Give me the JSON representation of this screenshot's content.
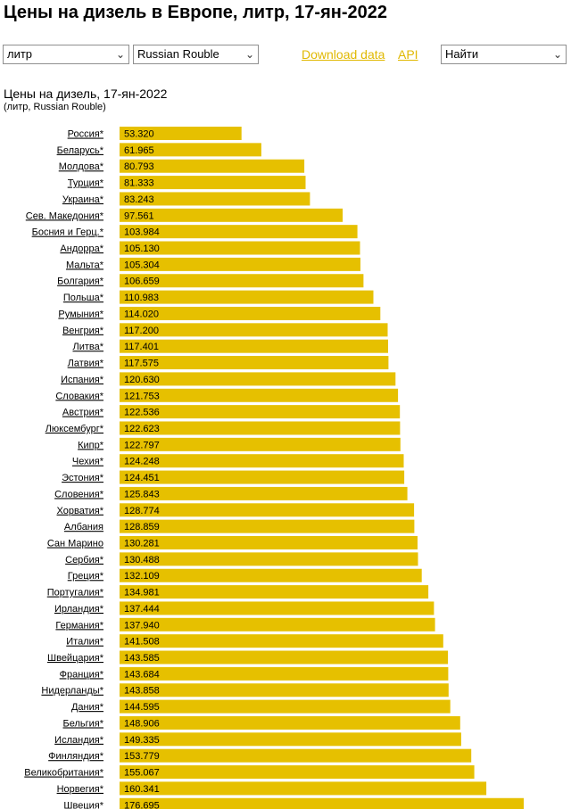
{
  "header": {
    "title": "Цены на дизель в Европе, литр, 17-ян-2022"
  },
  "controls": {
    "unit_select": "литр",
    "currency_select": "Russian Rouble",
    "download_label": "Download data",
    "api_label": "API",
    "find_select": "Найти"
  },
  "colors": {
    "bar": "#e6c000",
    "link": "#e0b800"
  },
  "chart_data": {
    "type": "bar",
    "orientation": "horizontal",
    "title": "Цены на дизель, 17-ян-2022",
    "subtitle": "(литр, Russian Rouble)",
    "categories": [
      "Россия*",
      "Беларусь*",
      "Молдова*",
      "Турция*",
      "Украина*",
      "Сев. Македония*",
      "Босния и Герц.*",
      "Андорра*",
      "Мальта*",
      "Болгария*",
      "Польша*",
      "Румыния*",
      "Венгрия*",
      "Литва*",
      "Латвия*",
      "Испания*",
      "Словакия*",
      "Австрия*",
      "Люксембург*",
      "Кипр*",
      "Чехия*",
      "Эстония*",
      "Словения*",
      "Хорватия*",
      "Албания",
      "Сан Марино",
      "Сербия*",
      "Греция*",
      "Португалия*",
      "Ирландия*",
      "Германия*",
      "Италия*",
      "Швейцария*",
      "Франция*",
      "Нидерланды*",
      "Дания*",
      "Бельгия*",
      "Исландия*",
      "Финляндия*",
      "Великобритания*",
      "Норвегия*",
      "Швеция*"
    ],
    "values": [
      53.32,
      61.965,
      80.793,
      81.333,
      83.243,
      97.561,
      103.984,
      105.13,
      105.304,
      106.659,
      110.983,
      114.02,
      117.2,
      117.401,
      117.575,
      120.63,
      121.753,
      122.536,
      122.623,
      122.797,
      124.248,
      124.451,
      125.843,
      128.774,
      128.859,
      130.281,
      130.488,
      132.109,
      134.981,
      137.444,
      137.94,
      141.508,
      143.585,
      143.684,
      143.858,
      144.595,
      148.906,
      149.335,
      153.779,
      155.067,
      160.341,
      176.695
    ],
    "value_labels": [
      "53.320",
      "61.965",
      "80.793",
      "81.333",
      "83.243",
      "97.561",
      "103.984",
      "105.130",
      "105.304",
      "106.659",
      "110.983",
      "114.020",
      "117.200",
      "117.401",
      "117.575",
      "120.630",
      "121.753",
      "122.536",
      "122.623",
      "122.797",
      "124.248",
      "124.451",
      "125.843",
      "128.774",
      "128.859",
      "130.281",
      "130.488",
      "132.109",
      "134.981",
      "137.444",
      "137.940",
      "141.508",
      "143.585",
      "143.684",
      "143.858",
      "144.595",
      "148.906",
      "149.335",
      "153.779",
      "155.067",
      "160.341",
      "176.695"
    ],
    "xlim": [
      0,
      176.695
    ],
    "grid": false,
    "legend": "none"
  }
}
